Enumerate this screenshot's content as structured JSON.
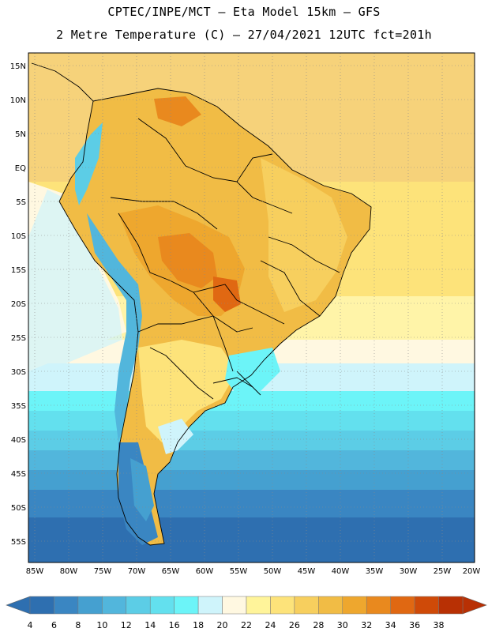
{
  "header": {
    "line1": "CPTEC/INPE/MCT –  Eta Model 15km – GFS",
    "line2": "2 Metre Temperature (C) – 27/04/2021 12UTC fct=201h"
  },
  "map": {
    "region": "South America",
    "lat_labels": [
      "15N",
      "10N",
      "5N",
      "EQ",
      "5S",
      "10S",
      "15S",
      "20S",
      "25S",
      "30S",
      "35S",
      "40S",
      "45S",
      "50S",
      "55S"
    ],
    "lon_labels": [
      "85W",
      "80W",
      "75W",
      "70W",
      "65W",
      "60W",
      "55W",
      "50W",
      "45W",
      "40W",
      "35W",
      "30W",
      "25W",
      "20W"
    ]
  },
  "colorbar": {
    "labels": [
      "4",
      "6",
      "8",
      "10",
      "12",
      "14",
      "16",
      "18",
      "20",
      "22",
      "24",
      "26",
      "28",
      "30",
      "32",
      "34",
      "36",
      "38"
    ],
    "colors": [
      "#2e6fb0",
      "#3a86c2",
      "#45a0d0",
      "#52b6dc",
      "#5ccde6",
      "#63e0ee",
      "#6cf4f8",
      "#cff4fb",
      "#fff8e1",
      "#fff49a",
      "#fde37a",
      "#f7cf5e",
      "#f1bc45",
      "#eea72e",
      "#e9891e",
      "#e06812",
      "#cf4a08",
      "#b83004"
    ]
  },
  "colors": {
    "ocean_cold": "#2e6fb0",
    "ocean_mid": "#5ccde6",
    "ocean_warm": "#fde37a",
    "land_warm": "#f1bc45",
    "land_hot": "#e9891e"
  }
}
